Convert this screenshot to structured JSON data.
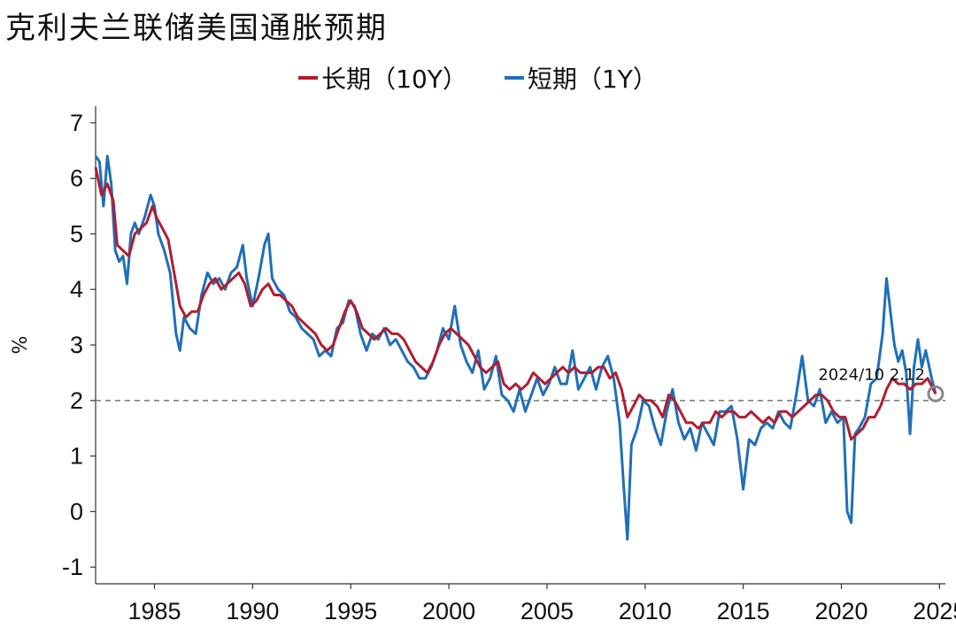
{
  "chart_data": {
    "type": "line",
    "title": "克利夫兰联储美国通胀预期",
    "ylabel": "%",
    "xlabel": "",
    "xlim": [
      1982,
      2025.3
    ],
    "ylim": [
      -1.3,
      7.3
    ],
    "yticks": [
      -1,
      0,
      1,
      2,
      3,
      4,
      5,
      6,
      7
    ],
    "xticks": [
      1985,
      1990,
      1995,
      2000,
      2005,
      2010,
      2015,
      2020,
      2025
    ],
    "legend_position": "top-center",
    "grid": false,
    "reference_line": {
      "y": 2,
      "style": "dashed",
      "color": "#808080"
    },
    "annotation": {
      "text": "2024/10 2.12",
      "x": 2024.8,
      "y": 2.12
    },
    "series": [
      {
        "name": "长期（10Y）",
        "color": "#b01e30",
        "points": [
          [
            1982.0,
            6.2
          ],
          [
            1982.3,
            5.7
          ],
          [
            1982.6,
            5.9
          ],
          [
            1982.9,
            5.6
          ],
          [
            1983.1,
            4.8
          ],
          [
            1983.4,
            4.7
          ],
          [
            1983.7,
            4.6
          ],
          [
            1984.0,
            5.0
          ],
          [
            1984.3,
            5.1
          ],
          [
            1984.6,
            5.2
          ],
          [
            1984.9,
            5.5
          ],
          [
            1985.1,
            5.3
          ],
          [
            1985.4,
            5.1
          ],
          [
            1985.7,
            4.9
          ],
          [
            1986.0,
            4.3
          ],
          [
            1986.3,
            3.7
          ],
          [
            1986.6,
            3.5
          ],
          [
            1986.9,
            3.6
          ],
          [
            1987.2,
            3.6
          ],
          [
            1987.5,
            3.9
          ],
          [
            1987.8,
            4.1
          ],
          [
            1988.1,
            4.2
          ],
          [
            1988.4,
            4.0
          ],
          [
            1988.7,
            4.1
          ],
          [
            1989.0,
            4.2
          ],
          [
            1989.3,
            4.3
          ],
          [
            1989.6,
            4.1
          ],
          [
            1989.9,
            3.7
          ],
          [
            1990.2,
            3.8
          ],
          [
            1990.5,
            4.0
          ],
          [
            1990.8,
            4.1
          ],
          [
            1991.1,
            3.9
          ],
          [
            1991.4,
            3.9
          ],
          [
            1991.7,
            3.8
          ],
          [
            1992.0,
            3.7
          ],
          [
            1992.3,
            3.5
          ],
          [
            1992.6,
            3.4
          ],
          [
            1992.9,
            3.3
          ],
          [
            1993.2,
            3.2
          ],
          [
            1993.5,
            3.0
          ],
          [
            1993.8,
            2.9
          ],
          [
            1994.1,
            3.0
          ],
          [
            1994.4,
            3.3
          ],
          [
            1994.7,
            3.6
          ],
          [
            1995.0,
            3.8
          ],
          [
            1995.3,
            3.6
          ],
          [
            1995.6,
            3.3
          ],
          [
            1995.9,
            3.2
          ],
          [
            1996.2,
            3.1
          ],
          [
            1996.5,
            3.2
          ],
          [
            1996.8,
            3.3
          ],
          [
            1997.1,
            3.2
          ],
          [
            1997.4,
            3.2
          ],
          [
            1997.7,
            3.1
          ],
          [
            1998.0,
            2.9
          ],
          [
            1998.3,
            2.7
          ],
          [
            1998.6,
            2.6
          ],
          [
            1998.9,
            2.5
          ],
          [
            1999.2,
            2.7
          ],
          [
            1999.5,
            3.0
          ],
          [
            1999.8,
            3.2
          ],
          [
            2000.1,
            3.3
          ],
          [
            2000.4,
            3.2
          ],
          [
            2000.7,
            3.1
          ],
          [
            2001.0,
            3.0
          ],
          [
            2001.3,
            2.8
          ],
          [
            2001.6,
            2.6
          ],
          [
            2001.9,
            2.5
          ],
          [
            2002.2,
            2.6
          ],
          [
            2002.5,
            2.7
          ],
          [
            2002.8,
            2.3
          ],
          [
            2003.1,
            2.2
          ],
          [
            2003.4,
            2.3
          ],
          [
            2003.7,
            2.2
          ],
          [
            2004.0,
            2.3
          ],
          [
            2004.3,
            2.5
          ],
          [
            2004.6,
            2.4
          ],
          [
            2004.9,
            2.3
          ],
          [
            2005.2,
            2.4
          ],
          [
            2005.5,
            2.5
          ],
          [
            2005.8,
            2.6
          ],
          [
            2006.1,
            2.5
          ],
          [
            2006.4,
            2.6
          ],
          [
            2006.7,
            2.5
          ],
          [
            2007.0,
            2.5
          ],
          [
            2007.3,
            2.5
          ],
          [
            2007.6,
            2.6
          ],
          [
            2007.9,
            2.6
          ],
          [
            2008.2,
            2.4
          ],
          [
            2008.5,
            2.5
          ],
          [
            2008.8,
            2.2
          ],
          [
            2009.1,
            1.7
          ],
          [
            2009.4,
            1.9
          ],
          [
            2009.7,
            2.1
          ],
          [
            2010.0,
            2.0
          ],
          [
            2010.3,
            2.0
          ],
          [
            2010.6,
            1.9
          ],
          [
            2010.9,
            1.7
          ],
          [
            2011.2,
            2.1
          ],
          [
            2011.5,
            2.0
          ],
          [
            2011.8,
            1.8
          ],
          [
            2012.1,
            1.6
          ],
          [
            2012.4,
            1.6
          ],
          [
            2012.7,
            1.5
          ],
          [
            2013.0,
            1.6
          ],
          [
            2013.3,
            1.6
          ],
          [
            2013.6,
            1.8
          ],
          [
            2013.9,
            1.7
          ],
          [
            2014.2,
            1.8
          ],
          [
            2014.5,
            1.8
          ],
          [
            2014.8,
            1.7
          ],
          [
            2015.1,
            1.7
          ],
          [
            2015.4,
            1.8
          ],
          [
            2015.7,
            1.7
          ],
          [
            2016.0,
            1.6
          ],
          [
            2016.3,
            1.7
          ],
          [
            2016.6,
            1.6
          ],
          [
            2016.9,
            1.8
          ],
          [
            2017.2,
            1.8
          ],
          [
            2017.5,
            1.7
          ],
          [
            2017.8,
            1.8
          ],
          [
            2018.1,
            1.9
          ],
          [
            2018.4,
            2.0
          ],
          [
            2018.7,
            2.1
          ],
          [
            2019.0,
            2.1
          ],
          [
            2019.3,
            2.0
          ],
          [
            2019.6,
            1.8
          ],
          [
            2019.9,
            1.7
          ],
          [
            2020.2,
            1.7
          ],
          [
            2020.5,
            1.3
          ],
          [
            2020.8,
            1.4
          ],
          [
            2021.1,
            1.5
          ],
          [
            2021.4,
            1.7
          ],
          [
            2021.7,
            1.7
          ],
          [
            2022.0,
            1.9
          ],
          [
            2022.3,
            2.2
          ],
          [
            2022.6,
            2.4
          ],
          [
            2022.9,
            2.3
          ],
          [
            2023.2,
            2.3
          ],
          [
            2023.5,
            2.2
          ],
          [
            2023.8,
            2.3
          ],
          [
            2024.1,
            2.3
          ],
          [
            2024.4,
            2.4
          ],
          [
            2024.8,
            2.12
          ]
        ]
      },
      {
        "name": "短期（1Y）",
        "color": "#1f6fb8",
        "points": [
          [
            1982.0,
            6.4
          ],
          [
            1982.2,
            6.3
          ],
          [
            1982.4,
            5.5
          ],
          [
            1982.6,
            6.4
          ],
          [
            1982.8,
            5.9
          ],
          [
            1983.0,
            4.7
          ],
          [
            1983.2,
            4.5
          ],
          [
            1983.4,
            4.6
          ],
          [
            1983.6,
            4.1
          ],
          [
            1983.8,
            5.0
          ],
          [
            1984.0,
            5.2
          ],
          [
            1984.2,
            5.0
          ],
          [
            1984.5,
            5.3
          ],
          [
            1984.8,
            5.7
          ],
          [
            1985.0,
            5.5
          ],
          [
            1985.2,
            5.0
          ],
          [
            1985.5,
            4.7
          ],
          [
            1985.8,
            4.3
          ],
          [
            1986.1,
            3.2
          ],
          [
            1986.3,
            2.9
          ],
          [
            1986.5,
            3.5
          ],
          [
            1986.8,
            3.3
          ],
          [
            1987.1,
            3.2
          ],
          [
            1987.4,
            3.9
          ],
          [
            1987.7,
            4.3
          ],
          [
            1988.0,
            4.1
          ],
          [
            1988.3,
            4.2
          ],
          [
            1988.6,
            4.0
          ],
          [
            1988.9,
            4.3
          ],
          [
            1989.2,
            4.4
          ],
          [
            1989.5,
            4.8
          ],
          [
            1989.7,
            4.2
          ],
          [
            1990.0,
            3.7
          ],
          [
            1990.3,
            4.2
          ],
          [
            1990.6,
            4.8
          ],
          [
            1990.8,
            5.0
          ],
          [
            1991.0,
            4.2
          ],
          [
            1991.3,
            4.0
          ],
          [
            1991.6,
            3.9
          ],
          [
            1991.9,
            3.6
          ],
          [
            1992.2,
            3.5
          ],
          [
            1992.5,
            3.3
          ],
          [
            1992.8,
            3.2
          ],
          [
            1993.1,
            3.1
          ],
          [
            1993.4,
            2.8
          ],
          [
            1993.7,
            2.9
          ],
          [
            1994.0,
            2.8
          ],
          [
            1994.3,
            3.3
          ],
          [
            1994.6,
            3.4
          ],
          [
            1994.9,
            3.8
          ],
          [
            1995.2,
            3.7
          ],
          [
            1995.5,
            3.2
          ],
          [
            1995.8,
            2.9
          ],
          [
            1996.1,
            3.2
          ],
          [
            1996.4,
            3.1
          ],
          [
            1996.7,
            3.3
          ],
          [
            1997.0,
            3.0
          ],
          [
            1997.3,
            3.1
          ],
          [
            1997.6,
            2.9
          ],
          [
            1997.9,
            2.7
          ],
          [
            1998.2,
            2.6
          ],
          [
            1998.5,
            2.4
          ],
          [
            1998.8,
            2.4
          ],
          [
            1999.1,
            2.6
          ],
          [
            1999.4,
            2.9
          ],
          [
            1999.7,
            3.3
          ],
          [
            2000.0,
            3.1
          ],
          [
            2000.3,
            3.7
          ],
          [
            2000.6,
            3.0
          ],
          [
            2000.9,
            2.7
          ],
          [
            2001.2,
            2.5
          ],
          [
            2001.5,
            2.9
          ],
          [
            2001.8,
            2.2
          ],
          [
            2002.1,
            2.4
          ],
          [
            2002.4,
            2.8
          ],
          [
            2002.7,
            2.1
          ],
          [
            2003.0,
            2.0
          ],
          [
            2003.3,
            1.8
          ],
          [
            2003.6,
            2.2
          ],
          [
            2003.9,
            1.8
          ],
          [
            2004.2,
            2.1
          ],
          [
            2004.5,
            2.4
          ],
          [
            2004.8,
            2.1
          ],
          [
            2005.1,
            2.3
          ],
          [
            2005.4,
            2.6
          ],
          [
            2005.7,
            2.3
          ],
          [
            2006.0,
            2.3
          ],
          [
            2006.3,
            2.9
          ],
          [
            2006.6,
            2.2
          ],
          [
            2006.9,
            2.4
          ],
          [
            2007.2,
            2.6
          ],
          [
            2007.5,
            2.2
          ],
          [
            2007.8,
            2.6
          ],
          [
            2008.1,
            2.8
          ],
          [
            2008.4,
            2.4
          ],
          [
            2008.7,
            1.6
          ],
          [
            2008.9,
            0.5
          ],
          [
            2009.1,
            -0.5
          ],
          [
            2009.3,
            1.2
          ],
          [
            2009.6,
            1.5
          ],
          [
            2009.9,
            2.0
          ],
          [
            2010.2,
            1.9
          ],
          [
            2010.5,
            1.5
          ],
          [
            2010.8,
            1.2
          ],
          [
            2011.1,
            1.8
          ],
          [
            2011.4,
            2.2
          ],
          [
            2011.7,
            1.6
          ],
          [
            2012.0,
            1.3
          ],
          [
            2012.3,
            1.5
          ],
          [
            2012.6,
            1.1
          ],
          [
            2012.9,
            1.6
          ],
          [
            2013.2,
            1.4
          ],
          [
            2013.5,
            1.2
          ],
          [
            2013.8,
            1.8
          ],
          [
            2014.1,
            1.8
          ],
          [
            2014.4,
            1.9
          ],
          [
            2014.7,
            1.3
          ],
          [
            2015.0,
            0.4
          ],
          [
            2015.3,
            1.3
          ],
          [
            2015.6,
            1.2
          ],
          [
            2015.9,
            1.5
          ],
          [
            2016.2,
            1.6
          ],
          [
            2016.5,
            1.5
          ],
          [
            2016.8,
            1.8
          ],
          [
            2017.1,
            1.6
          ],
          [
            2017.4,
            1.5
          ],
          [
            2017.7,
            2.1
          ],
          [
            2018.0,
            2.8
          ],
          [
            2018.3,
            2.0
          ],
          [
            2018.6,
            1.9
          ],
          [
            2018.9,
            2.2
          ],
          [
            2019.2,
            1.6
          ],
          [
            2019.5,
            1.8
          ],
          [
            2019.8,
            1.6
          ],
          [
            2020.1,
            1.7
          ],
          [
            2020.3,
            0.0
          ],
          [
            2020.5,
            -0.2
          ],
          [
            2020.7,
            1.4
          ],
          [
            2020.9,
            1.5
          ],
          [
            2021.2,
            1.7
          ],
          [
            2021.5,
            2.3
          ],
          [
            2021.8,
            2.4
          ],
          [
            2022.1,
            3.2
          ],
          [
            2022.3,
            4.2
          ],
          [
            2022.5,
            3.6
          ],
          [
            2022.7,
            3.0
          ],
          [
            2022.9,
            2.7
          ],
          [
            2023.1,
            2.9
          ],
          [
            2023.3,
            2.5
          ],
          [
            2023.5,
            1.4
          ],
          [
            2023.7,
            2.6
          ],
          [
            2023.9,
            3.1
          ],
          [
            2024.1,
            2.6
          ],
          [
            2024.3,
            2.9
          ],
          [
            2024.6,
            2.4
          ],
          [
            2024.8,
            2.12
          ]
        ]
      }
    ]
  }
}
